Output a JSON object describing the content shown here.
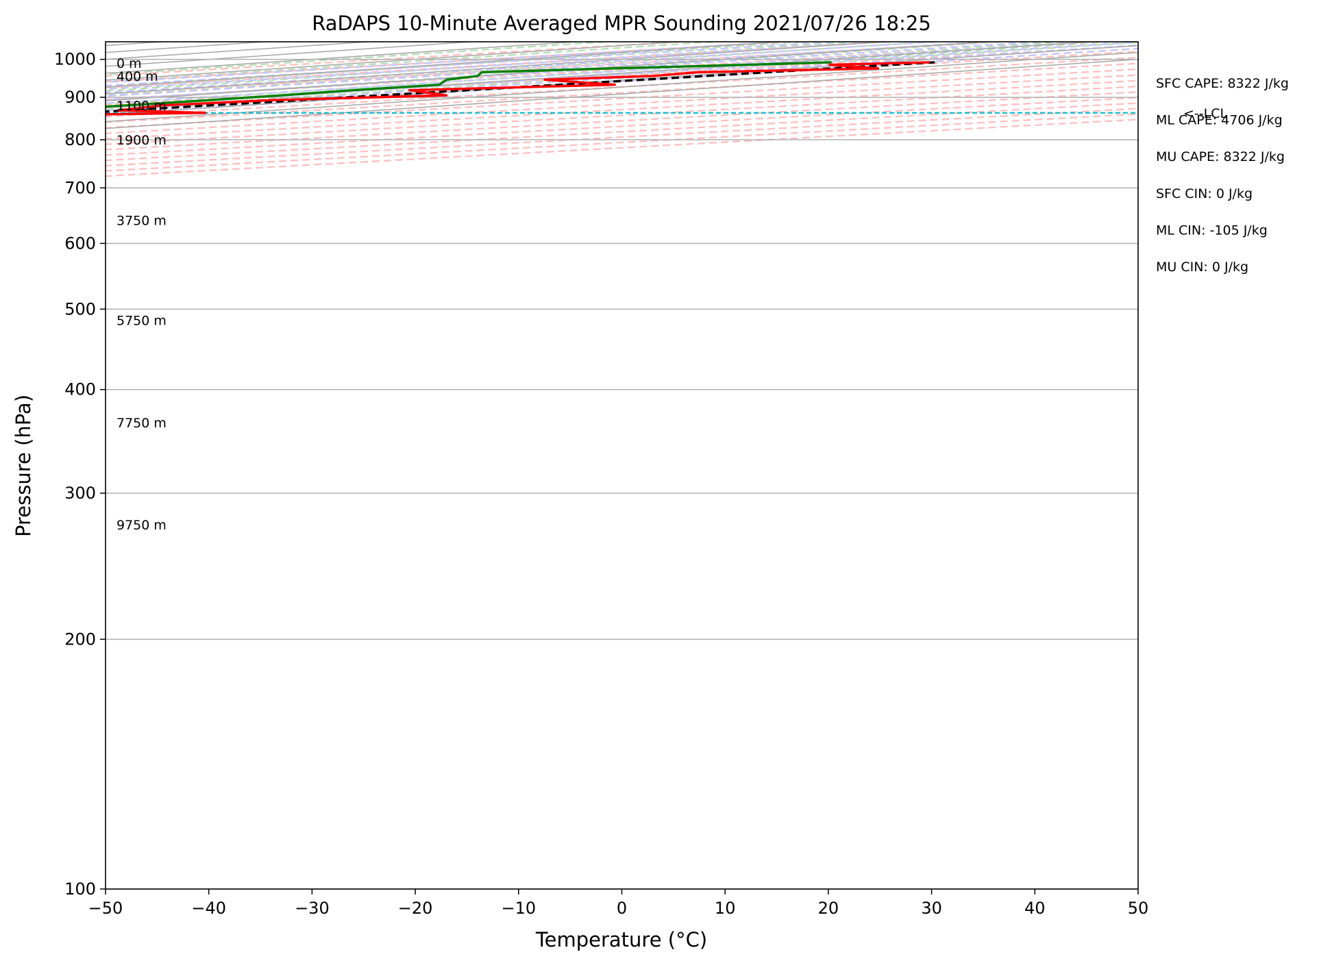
{
  "chart_data": {
    "type": "skew-t",
    "title": "RaDAPS 10-Minute Averaged MPR Sounding 2021/07/26 18:25",
    "xlabel": "Temperature (°C)",
    "ylabel": "Pressure (hPa)",
    "xlim": [
      -50,
      50
    ],
    "ylim": [
      1050,
      100
    ],
    "y_scale": "log",
    "grid": true,
    "x_ticks": [
      -50,
      -40,
      -30,
      -20,
      -10,
      0,
      10,
      20,
      30,
      40,
      50
    ],
    "x_tick_labels": [
      "−50",
      "−40",
      "−30",
      "−20",
      "−10",
      "0",
      "10",
      "20",
      "30",
      "40",
      "50"
    ],
    "y_ticks": [
      1000,
      900,
      800,
      700,
      600,
      500,
      400,
      300,
      200,
      100
    ],
    "y_tick_labels": [
      "1000",
      "900",
      "800",
      "700",
      "600",
      "500",
      "400",
      "300",
      "200",
      "100"
    ],
    "isotherms_c": [
      -100,
      -90,
      -80,
      -70,
      -60,
      -50,
      -40,
      -30,
      -20,
      -10,
      0,
      10,
      20,
      30,
      40,
      50
    ],
    "dry_adiabats_k": [
      250,
      260,
      270,
      280,
      290,
      300,
      310,
      320,
      330,
      340,
      350,
      360,
      370,
      380,
      390,
      400,
      410,
      420,
      430
    ],
    "moist_adiabats_c": [
      -10,
      -5,
      0,
      5,
      10,
      15,
      20,
      25,
      30,
      35
    ],
    "mixing_ratios_gkg": [
      0.4,
      1,
      2,
      3,
      5,
      8,
      12,
      16,
      20
    ],
    "colors": {
      "temperature": "#ff0000",
      "dewpoint": "#008000",
      "parcel": "#000000",
      "lcl": "#17becf",
      "isotherm": "#a6a6a6",
      "dry_adiabat": "#ffc0c0",
      "moist_adiabat": "#c4c4ff",
      "mixing_ratio": "#b8dfb8"
    },
    "temperature_profile": {
      "name": "Temperature",
      "pressure": [
        992,
        985,
        975,
        965,
        955,
        945,
        932,
        918,
        905,
        893,
        880,
        868,
        862,
        857,
        850,
        820,
        780,
        740,
        700,
        660,
        600,
        550,
        520,
        500,
        470,
        450,
        430,
        400,
        380,
        360,
        340,
        320,
        300,
        290,
        282,
        270,
        262
      ],
      "values": [
        34,
        28,
        38,
        26,
        27,
        22,
        36,
        24,
        35,
        25,
        22,
        25,
        37,
        26,
        18,
        1.4,
        -0.2,
        -3.5,
        -4.6,
        -7,
        -8.9,
        -10.2,
        -11,
        -11.6,
        -12.6,
        -13.1,
        -13.6,
        -14.3,
        -15.2,
        -16.2,
        -17,
        -17.6,
        -18.3,
        -19,
        -19.5,
        -20.2,
        -20.8
      ]
    },
    "dewpoint_profile": {
      "name": "Dewpoint",
      "pressure": [
        992,
        985,
        975,
        965,
        955,
        945,
        932,
        918,
        905,
        893,
        880,
        868,
        862,
        857,
        850,
        820,
        780,
        740,
        700,
        660,
        600,
        550,
        520,
        500,
        470,
        450,
        430,
        400,
        380,
        360,
        340,
        320,
        300,
        290,
        282,
        275,
        270,
        266,
        262
      ],
      "values": [
        24.5,
        20,
        12,
        5,
        10,
        12.5,
        19,
        18.5,
        19,
        19,
        18.5,
        18,
        18.5,
        18,
        16,
        1.4,
        -0.2,
        -3.5,
        -4.6,
        -7,
        -8.9,
        -10.2,
        -11,
        -11.6,
        -12.6,
        -13.1,
        -13.6,
        -14.3,
        -15.2,
        -16.2,
        -17,
        -17.6,
        -18.3,
        -22.5,
        -19.5,
        -24.5,
        -24.8,
        -22.5,
        -20.8
      ]
    },
    "parcel_profile": {
      "name": "Parcel",
      "pressure": [
        992,
        970,
        950,
        930,
        910,
        890,
        862,
        800,
        700,
        600,
        500,
        400,
        350,
        300,
        280,
        262
      ],
      "values": [
        34.5,
        33,
        31.8,
        30.5,
        29,
        27.5,
        25.2,
        24.1,
        22.6,
        20.4,
        18.2,
        14.5,
        12,
        7.7,
        4.9,
        0.5
      ]
    },
    "lcl": {
      "pressure": 862,
      "label": "<--LCL"
    },
    "height_labels": [
      {
        "pressure": 990,
        "text": "0 m"
      },
      {
        "pressure": 955,
        "text": "400 m"
      },
      {
        "pressure": 880,
        "text": "1100 m"
      },
      {
        "pressure": 800,
        "text": "1900 m"
      },
      {
        "pressure": 640,
        "text": "3750 m"
      },
      {
        "pressure": 485,
        "text": "5750 m"
      },
      {
        "pressure": 365,
        "text": "7750 m"
      },
      {
        "pressure": 275,
        "text": "9750 m"
      }
    ],
    "stats": [
      "SFC CAPE: 8322 J/kg",
      "ML CAPE: 4706 J/kg",
      "MU CAPE: 8322 J/kg",
      "SFC CIN: 0 J/kg",
      "ML CIN: -105 J/kg",
      "MU CIN: 0 J/kg"
    ]
  }
}
